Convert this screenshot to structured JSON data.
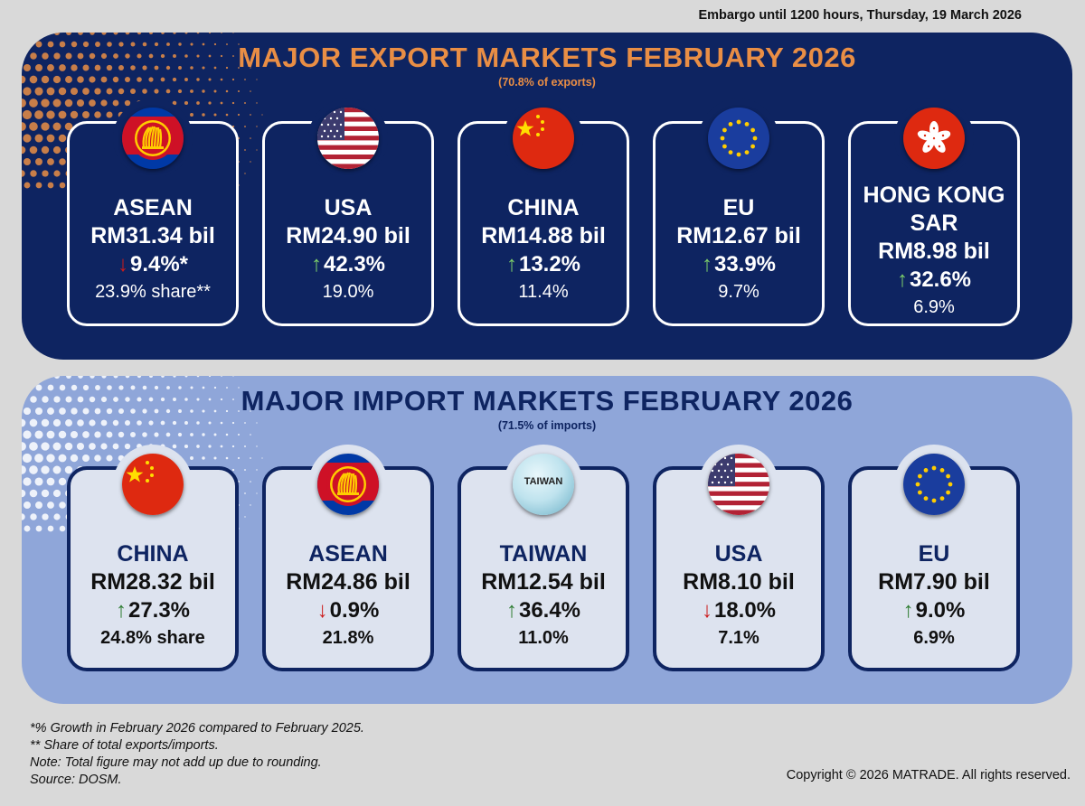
{
  "embargo": "Embargo until 1200 hours, Thursday, 19 March 2026",
  "exports": {
    "title": "MAJOR EXPORT MARKETS FEBRUARY 2026",
    "subtitle": "(70.8% of exports)",
    "cards": [
      {
        "flag": "asean-flag-icon",
        "name": "ASEAN",
        "value": "RM31.34 bil",
        "direction": "down",
        "growth": "9.4%*",
        "share": "23.9% share**"
      },
      {
        "flag": "usa-flag-icon",
        "name": "USA",
        "value": "RM24.90 bil",
        "direction": "up",
        "growth": "42.3%",
        "share": "19.0%"
      },
      {
        "flag": "china-flag-icon",
        "name": "CHINA",
        "value": "RM14.88 bil",
        "direction": "up",
        "growth": "13.2%",
        "share": "11.4%"
      },
      {
        "flag": "eu-flag-icon",
        "name": "EU",
        "value": "RM12.67 bil",
        "direction": "up",
        "growth": "33.9%",
        "share": "9.7%"
      },
      {
        "flag": "hongkong-flag-icon",
        "name1": "HONG KONG",
        "name2": "SAR",
        "value": "RM8.98 bil",
        "direction": "up",
        "growth": "32.6%",
        "share": "6.9%"
      }
    ]
  },
  "imports": {
    "title": "MAJOR IMPORT MARKETS FEBRUARY 2026",
    "subtitle": "(71.5% of imports)",
    "cards": [
      {
        "flag": "china-flag-icon",
        "name": "CHINA",
        "value": "RM28.32 bil",
        "direction": "up",
        "growth": "27.3%",
        "share": "24.8% share"
      },
      {
        "flag": "asean-flag-icon",
        "name": "ASEAN",
        "value": "RM24.86 bil",
        "direction": "down",
        "growth": "0.9%",
        "share": "21.8%"
      },
      {
        "flag": "taiwan-badge-icon",
        "badge_text": "TAIWAN",
        "name": "TAIWAN",
        "value": "RM12.54 bil",
        "direction": "up",
        "growth": "36.4%",
        "share": "11.0%"
      },
      {
        "flag": "usa-flag-icon",
        "name": "USA",
        "value": "RM8.10 bil",
        "direction": "down",
        "growth": "18.0%",
        "share": "7.1%"
      },
      {
        "flag": "eu-flag-icon",
        "name": "EU",
        "value": "RM7.90 bil",
        "direction": "up",
        "growth": "9.0%",
        "share": "6.9%"
      }
    ]
  },
  "arrows": {
    "up": "↑",
    "down": "↓"
  },
  "colors": {
    "navy": "#0e2461",
    "orange": "#e98e45",
    "light_blue": "#8fa6d9",
    "up_green": "#2e7d32",
    "down_red": "#cc1b1b"
  },
  "notes": [
    "*% Growth in February 2026 compared to February 2025.",
    "** Share of total exports/imports.",
    "Note: Total figure may not add up due to rounding.",
    "Source: DOSM."
  ],
  "copyright": "Copyright © 2026 MATRADE. All rights reserved."
}
